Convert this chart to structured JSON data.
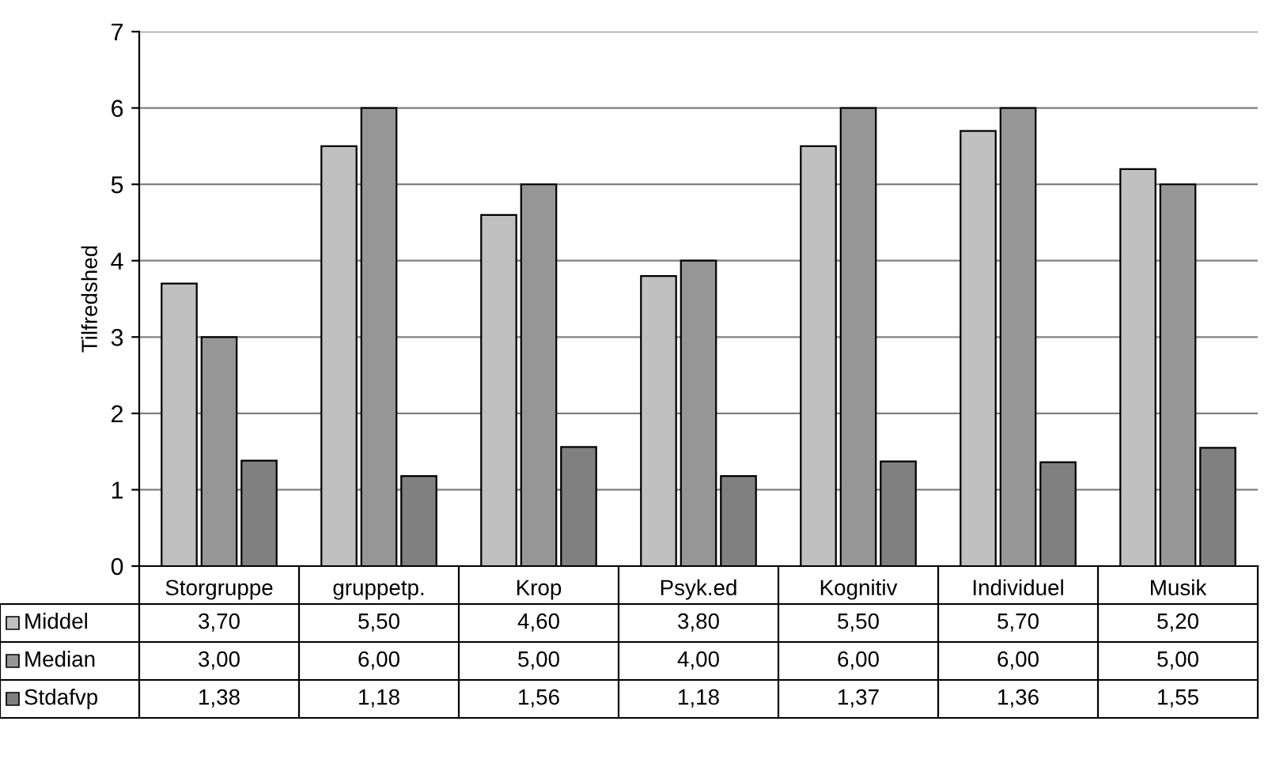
{
  "chart_data": {
    "type": "bar",
    "ylabel": "Tilfredshed",
    "categories": [
      "Storgruppe",
      "gruppetp.",
      "Krop",
      "Psyk.ed",
      "Kognitiv",
      "Individuel",
      "Musik"
    ],
    "series": [
      {
        "name": "Middel",
        "color": "#c0c0c0",
        "values": [
          3.7,
          5.5,
          4.6,
          3.8,
          5.5,
          5.7,
          5.2
        ],
        "value_labels": [
          "3,70",
          "5,50",
          "4,60",
          "3,80",
          "5,50",
          "5,70",
          "5,20"
        ]
      },
      {
        "name": "Median",
        "color": "#969696",
        "values": [
          3.0,
          6.0,
          5.0,
          4.0,
          6.0,
          6.0,
          5.0
        ],
        "value_labels": [
          "3,00",
          "6,00",
          "5,00",
          "4,00",
          "6,00",
          "6,00",
          "5,00"
        ]
      },
      {
        "name": "Stdafvp",
        "color": "#808080",
        "values": [
          1.38,
          1.18,
          1.56,
          1.18,
          1.37,
          1.36,
          1.55
        ],
        "value_labels": [
          "1,38",
          "1,18",
          "1,56",
          "1,18",
          "1,37",
          "1,36",
          "1,55"
        ]
      }
    ],
    "ylim": [
      0,
      7
    ],
    "yticks": [
      0,
      1,
      2,
      3,
      4,
      5,
      6,
      7
    ],
    "grid": "y",
    "legend": "bottom left"
  }
}
